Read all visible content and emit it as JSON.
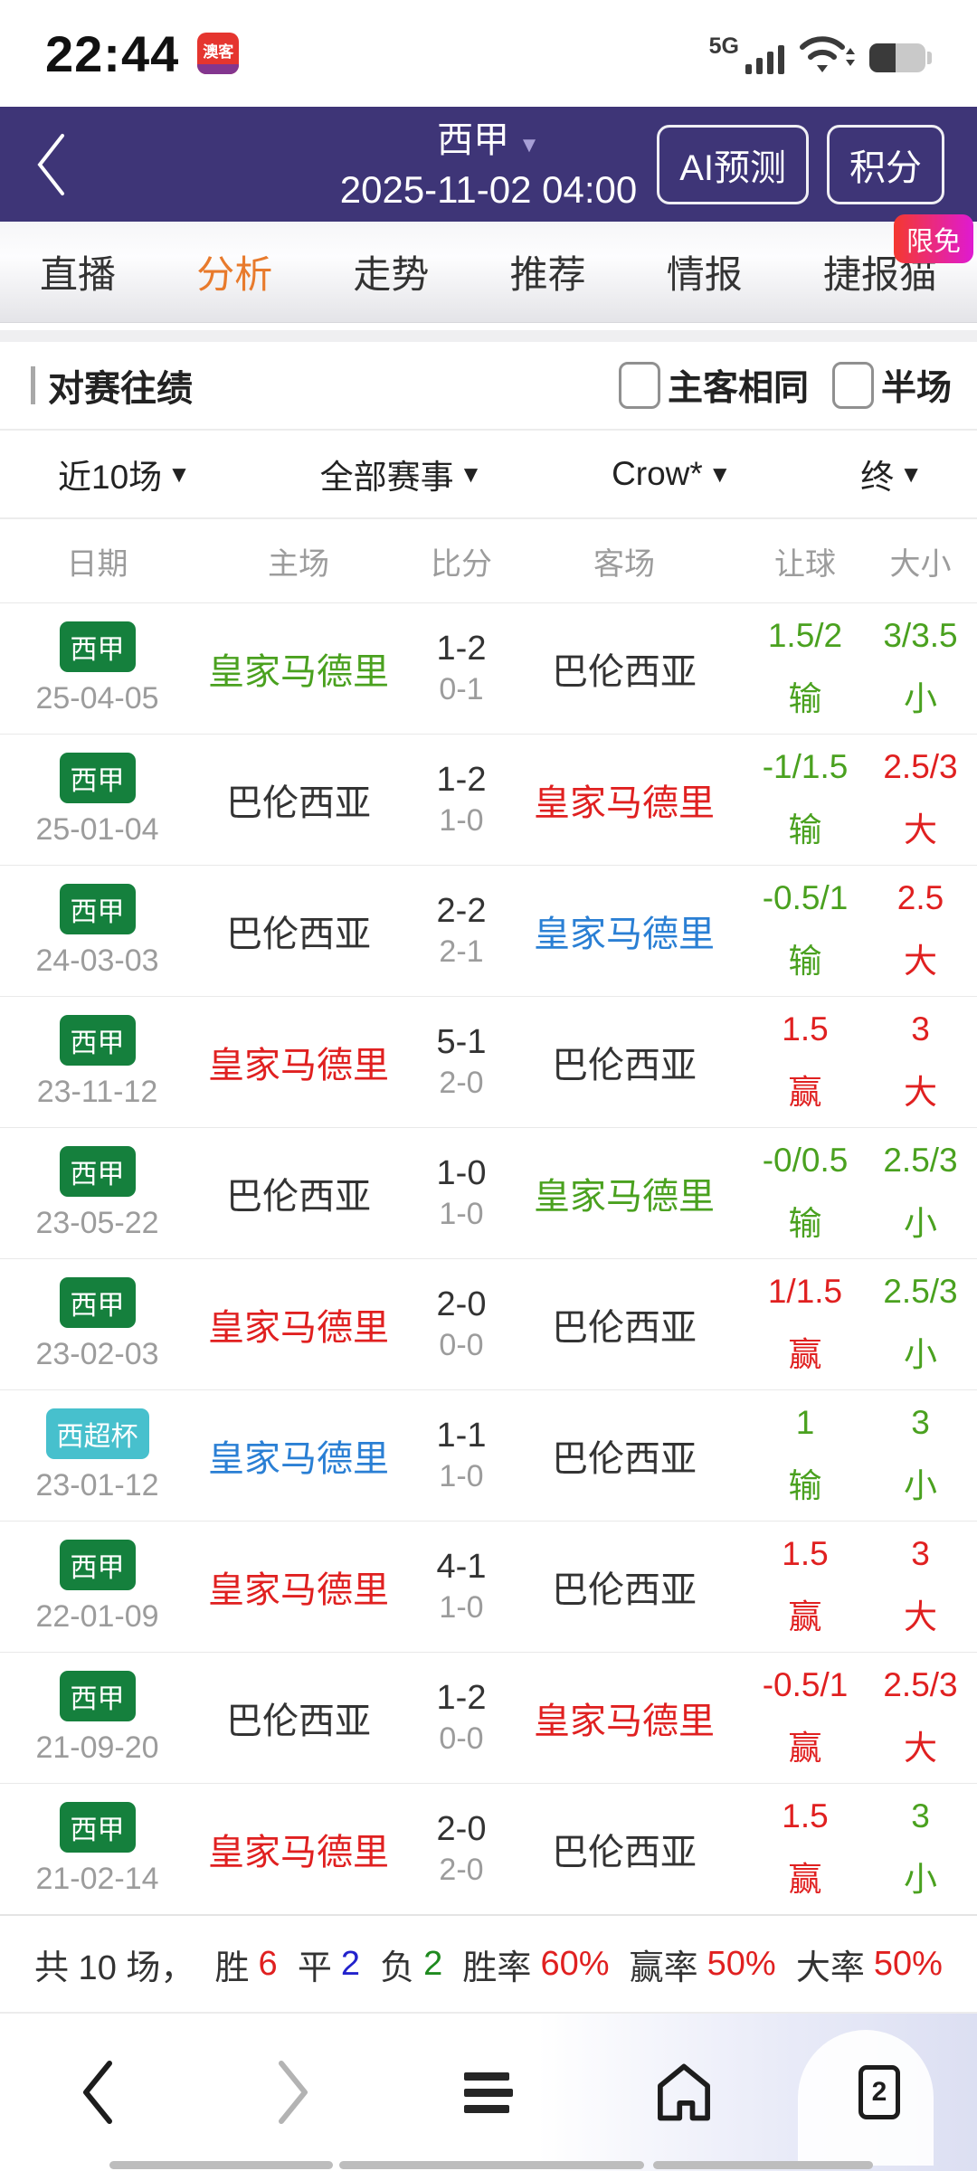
{
  "colors": {
    "dark": "#333333",
    "black": "#333333",
    "gray": "#999999",
    "red": "#e02020",
    "green": "#4aa11f",
    "blue": "#2a7fd4",
    "deep_blue": "#2222cc",
    "dark_green": "#1f8a1f",
    "accent": "#e87a2c",
    "badge_green": "#15803d",
    "badge_teal": "#47c0cd",
    "header_purple": "#3e3577"
  },
  "icons": {
    "caret_down": "▼"
  },
  "status_bar": {
    "time": "22:44",
    "app_icon": "澳客",
    "network": "5G"
  },
  "header": {
    "league": "西甲",
    "datetime": "2025-11-02 04:00",
    "ai_button": "AI预测",
    "points_button": "积分"
  },
  "tabs": {
    "items": [
      "直播",
      "分析",
      "走势",
      "推荐",
      "情报",
      "捷报猫"
    ],
    "active_index": 1,
    "badge": "限免"
  },
  "section": {
    "title": "对赛往绩",
    "checkbox1": "主客相同",
    "checkbox2": "半场"
  },
  "filters": [
    {
      "label": "近10场"
    },
    {
      "label": "全部赛事"
    },
    {
      "label": "Crow*"
    },
    {
      "label": "终"
    }
  ],
  "table": {
    "headers": [
      "日期",
      "主场",
      "比分",
      "客场",
      "让球",
      "大小"
    ],
    "rows": [
      {
        "league": "西甲",
        "badge_color": "badge_green",
        "date": "25-04-05",
        "home": "皇家马德里",
        "home_color": "green",
        "score_ft": "1-2",
        "score_ht": "0-1",
        "away": "巴伦西亚",
        "away_color": "black",
        "handicap": "1.5/2",
        "handicap_result": "输",
        "handicap_color": "green",
        "overunder": "3/3.5",
        "overunder_result": "小",
        "overunder_color": "green"
      },
      {
        "league": "西甲",
        "badge_color": "badge_green",
        "date": "25-01-04",
        "home": "巴伦西亚",
        "home_color": "black",
        "score_ft": "1-2",
        "score_ht": "1-0",
        "away": "皇家马德里",
        "away_color": "red",
        "handicap": "-1/1.5",
        "handicap_result": "输",
        "handicap_color": "green",
        "overunder": "2.5/3",
        "overunder_result": "大",
        "overunder_color": "red"
      },
      {
        "league": "西甲",
        "badge_color": "badge_green",
        "date": "24-03-03",
        "home": "巴伦西亚",
        "home_color": "black",
        "score_ft": "2-2",
        "score_ht": "2-1",
        "away": "皇家马德里",
        "away_color": "blue",
        "handicap": "-0.5/1",
        "handicap_result": "输",
        "handicap_color": "green",
        "overunder": "2.5",
        "overunder_result": "大",
        "overunder_color": "red"
      },
      {
        "league": "西甲",
        "badge_color": "badge_green",
        "date": "23-11-12",
        "home": "皇家马德里",
        "home_color": "red",
        "score_ft": "5-1",
        "score_ht": "2-0",
        "away": "巴伦西亚",
        "away_color": "black",
        "handicap": "1.5",
        "handicap_result": "赢",
        "handicap_color": "red",
        "overunder": "3",
        "overunder_result": "大",
        "overunder_color": "red"
      },
      {
        "league": "西甲",
        "badge_color": "badge_green",
        "date": "23-05-22",
        "home": "巴伦西亚",
        "home_color": "black",
        "score_ft": "1-0",
        "score_ht": "1-0",
        "away": "皇家马德里",
        "away_color": "green",
        "handicap": "-0/0.5",
        "handicap_result": "输",
        "handicap_color": "green",
        "overunder": "2.5/3",
        "overunder_result": "小",
        "overunder_color": "green"
      },
      {
        "league": "西甲",
        "badge_color": "badge_green",
        "date": "23-02-03",
        "home": "皇家马德里",
        "home_color": "red",
        "score_ft": "2-0",
        "score_ht": "0-0",
        "away": "巴伦西亚",
        "away_color": "black",
        "handicap": "1/1.5",
        "handicap_result": "赢",
        "handicap_color": "red",
        "overunder": "2.5/3",
        "overunder_result": "小",
        "overunder_color": "green"
      },
      {
        "league": "西超杯",
        "badge_color": "badge_teal",
        "date": "23-01-12",
        "home": "皇家马德里",
        "home_color": "blue",
        "score_ft": "1-1",
        "score_ht": "1-0",
        "away": "巴伦西亚",
        "away_color": "black",
        "handicap": "1",
        "handicap_result": "输",
        "handicap_color": "green",
        "overunder": "3",
        "overunder_result": "小",
        "overunder_color": "green"
      },
      {
        "league": "西甲",
        "badge_color": "badge_green",
        "date": "22-01-09",
        "home": "皇家马德里",
        "home_color": "red",
        "score_ft": "4-1",
        "score_ht": "1-0",
        "away": "巴伦西亚",
        "away_color": "black",
        "handicap": "1.5",
        "handicap_result": "赢",
        "handicap_color": "red",
        "overunder": "3",
        "overunder_result": "大",
        "overunder_color": "red"
      },
      {
        "league": "西甲",
        "badge_color": "badge_green",
        "date": "21-09-20",
        "home": "巴伦西亚",
        "home_color": "black",
        "score_ft": "1-2",
        "score_ht": "0-0",
        "away": "皇家马德里",
        "away_color": "red",
        "handicap": "-0.5/1",
        "handicap_result": "赢",
        "handicap_color": "red",
        "overunder": "2.5/3",
        "overunder_result": "大",
        "overunder_color": "red"
      },
      {
        "league": "西甲",
        "badge_color": "badge_green",
        "date": "21-02-14",
        "home": "皇家马德里",
        "home_color": "red",
        "score_ft": "2-0",
        "score_ht": "2-0",
        "away": "巴伦西亚",
        "away_color": "black",
        "handicap": "1.5",
        "handicap_result": "赢",
        "handicap_color": "red",
        "overunder": "3",
        "overunder_result": "小",
        "overunder_color": "green"
      }
    ]
  },
  "summary": {
    "groups": [
      [
        {
          "text": "共 10 场，",
          "color": "dark"
        }
      ],
      [
        {
          "text": "胜",
          "color": "dark"
        },
        {
          "text": "6",
          "color": "red"
        }
      ],
      [
        {
          "text": "平",
          "color": "dark"
        },
        {
          "text": "2",
          "color": "deep_blue"
        }
      ],
      [
        {
          "text": "负",
          "color": "dark"
        },
        {
          "text": "2",
          "color": "dark_green"
        }
      ],
      [
        {
          "text": "胜率",
          "color": "dark"
        },
        {
          "text": "60%",
          "color": "red"
        }
      ],
      [
        {
          "text": "赢率",
          "color": "dark"
        },
        {
          "text": "50%",
          "color": "red"
        }
      ],
      [
        {
          "text": "大率",
          "color": "dark"
        },
        {
          "text": "50%",
          "color": "red"
        }
      ]
    ]
  },
  "bottom_nav": {
    "tabs_count": "2"
  }
}
